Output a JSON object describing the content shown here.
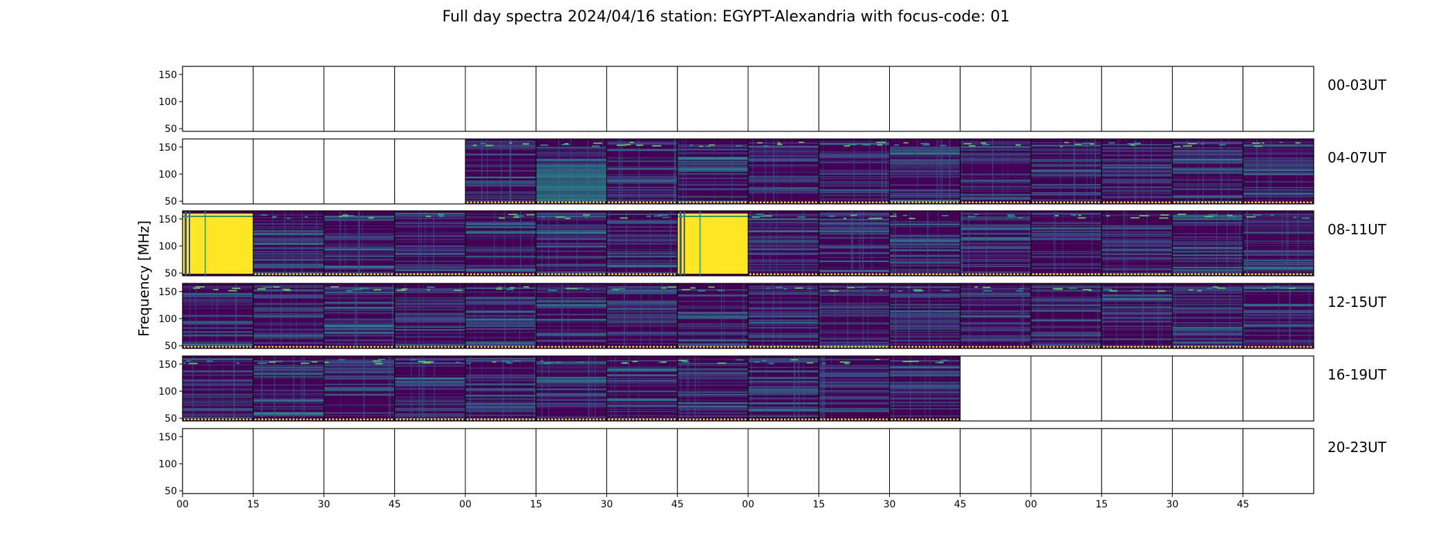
{
  "chart_data": {
    "type": "heatmap",
    "title": "Full day spectra 2024/04/16 station: EGYPT-Alexandria with focus-code: 01",
    "ylabel": "Frequency [MHz]",
    "xlabel": "",
    "ylim": [
      45,
      165
    ],
    "yticks": [
      50,
      100,
      150
    ],
    "xticks": [
      "00",
      "15",
      "30",
      "45",
      "00",
      "15",
      "30",
      "45",
      "00",
      "15",
      "30",
      "45",
      "00",
      "15",
      "30",
      "45"
    ],
    "panels_per_row": 16,
    "panel_minutes": 15,
    "colormap": [
      "#440154",
      "#3b528b",
      "#21918c",
      "#5ec962",
      "#fde725"
    ],
    "rows": [
      {
        "label": "00-03UT",
        "panels": [
          "empty",
          "empty",
          "empty",
          "empty",
          "empty",
          "empty",
          "empty",
          "empty",
          "empty",
          "empty",
          "empty",
          "empty",
          "empty",
          "empty",
          "empty",
          "empty"
        ]
      },
      {
        "label": "04-07UT",
        "panels": [
          "empty",
          "empty",
          "empty",
          "empty",
          "data",
          "data-bright",
          "data",
          "data",
          "data",
          "data",
          "data",
          "data",
          "data",
          "data",
          "data",
          "data"
        ]
      },
      {
        "label": "08-11UT",
        "panels": [
          "saturated",
          "data",
          "data",
          "data",
          "data",
          "data",
          "data",
          "saturated",
          "data",
          "data",
          "data",
          "data",
          "data",
          "data",
          "data",
          "data"
        ]
      },
      {
        "label": "12-15UT",
        "panels": [
          "data",
          "data",
          "data",
          "data",
          "data",
          "data",
          "data",
          "data",
          "data",
          "data",
          "data",
          "data",
          "data",
          "data",
          "data",
          "data"
        ]
      },
      {
        "label": "16-19UT",
        "panels": [
          "data",
          "data",
          "data",
          "data",
          "data",
          "data",
          "data",
          "data",
          "data",
          "data",
          "data",
          "empty",
          "empty",
          "empty",
          "empty",
          "empty"
        ]
      },
      {
        "label": "20-23UT",
        "panels": [
          "empty",
          "empty",
          "empty",
          "empty",
          "empty",
          "empty",
          "empty",
          "empty",
          "empty",
          "empty",
          "empty",
          "empty",
          "empty",
          "empty",
          "empty",
          "empty"
        ]
      }
    ]
  }
}
